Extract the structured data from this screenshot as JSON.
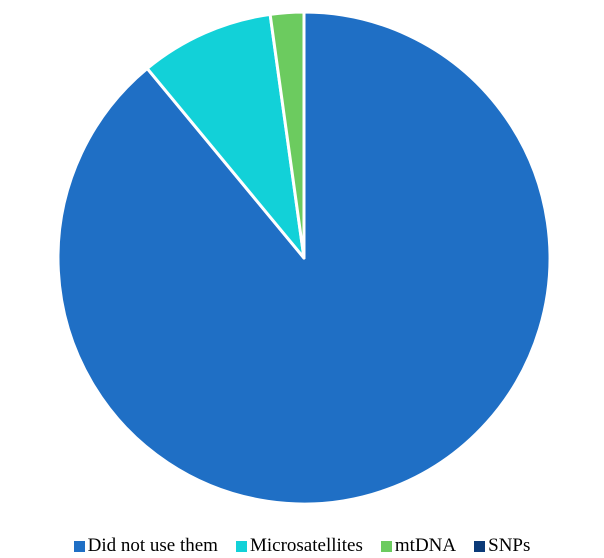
{
  "chart_data": {
    "type": "pie",
    "title": "",
    "legend_position": "bottom",
    "slices": [
      {
        "label": "Did not use them",
        "value": 89.0,
        "color": "#1F6FC5"
      },
      {
        "label": "Microsatellites",
        "value": 8.8,
        "color": "#12D1D8"
      },
      {
        "label": "mtDNA",
        "value": 2.2,
        "color": "#6CCB5F"
      },
      {
        "label": "SNPs",
        "value": 0.0,
        "color": "#0B3A78"
      }
    ]
  }
}
